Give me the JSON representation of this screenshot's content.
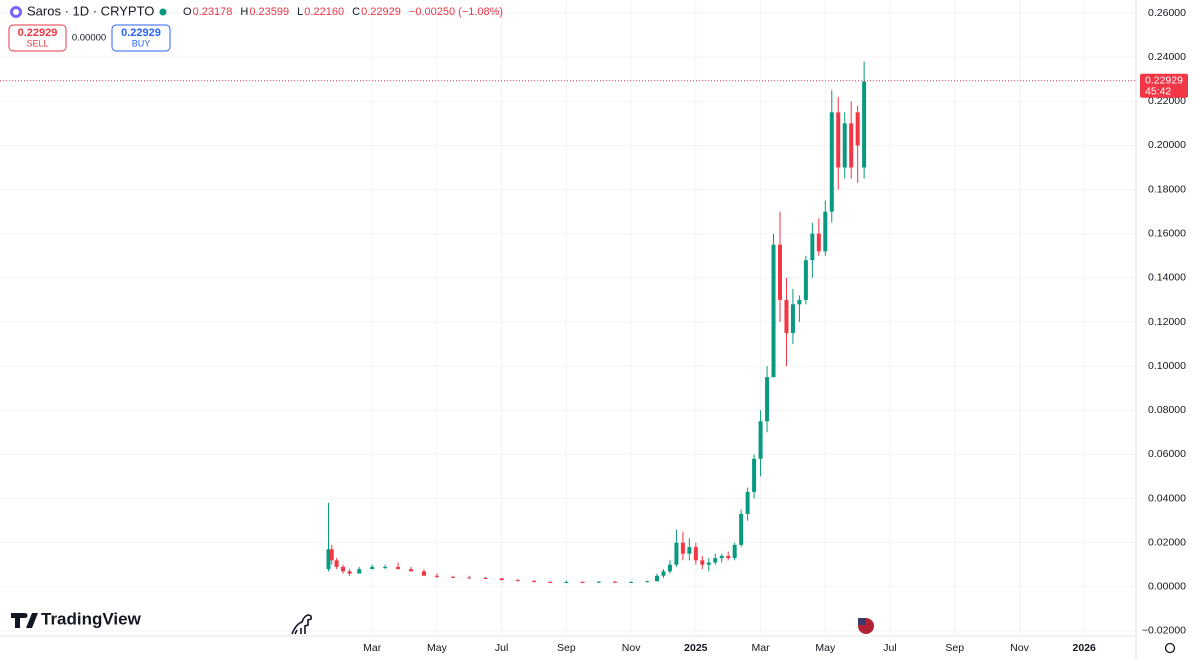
{
  "toolbar": {
    "symbol": "Saros · 1D · CRYPTO",
    "open_label": "O",
    "open": "0.23178",
    "high_label": "H",
    "high": "0.23599",
    "low_label": "L",
    "low": "0.22160",
    "close_label": "C",
    "close": "0.22929",
    "change": "−0.00250 (−1.08%)",
    "sell_price": "0.22929",
    "sell": "SELL",
    "spread": "0.00000",
    "buy_price": "0.22929",
    "buy": "BUY"
  },
  "logo": "TradingView",
  "chart_data": {
    "type": "candlestick",
    "up_color": "#089981",
    "down_color": "#f23645",
    "grid": true,
    "xlim": [
      -8.5,
      26.6
    ],
    "xticks": [
      {
        "value": 3,
        "label": "Mar"
      },
      {
        "value": 5,
        "label": "May"
      },
      {
        "value": 7,
        "label": "Jul"
      },
      {
        "value": 9,
        "label": "Sep"
      },
      {
        "value": 11,
        "label": "Nov"
      },
      {
        "value": 13,
        "label": "2025"
      },
      {
        "value": 15,
        "label": "Mar"
      },
      {
        "value": 17,
        "label": "May"
      },
      {
        "value": 19,
        "label": "Jul"
      },
      {
        "value": 21,
        "label": "Sep"
      },
      {
        "value": 23,
        "label": "Nov"
      },
      {
        "value": 25,
        "label": "2026"
      }
    ],
    "ylim": [
      -0.0223,
      0.2659
    ],
    "yticks": [
      {
        "value": 0.26,
        "label": "0.26000"
      },
      {
        "value": 0.24,
        "label": "0.24000"
      },
      {
        "value": 0.22,
        "label": "0.22000"
      },
      {
        "value": 0.2,
        "label": "0.20000"
      },
      {
        "value": 0.18,
        "label": "0.18000"
      },
      {
        "value": 0.16,
        "label": "0.16000"
      },
      {
        "value": 0.14,
        "label": "0.14000"
      },
      {
        "value": 0.12,
        "label": "0.12000"
      },
      {
        "value": 0.1,
        "label": "0.10000"
      },
      {
        "value": 0.08,
        "label": "0.08000"
      },
      {
        "value": 0.06,
        "label": "0.06000"
      },
      {
        "value": 0.04,
        "label": "0.04000"
      },
      {
        "value": 0.02,
        "label": "0.02000"
      },
      {
        "value": 0,
        "label": "0.00000"
      },
      {
        "value": -0.02,
        "label": "−0.02000"
      }
    ],
    "last_price": 0.22929,
    "countdown": "45:42",
    "x": [
      1.65,
      1.75,
      1.9,
      2.1,
      2.3,
      2.6,
      3.0,
      3.4,
      3.8,
      4.2,
      4.6,
      5.0,
      5.5,
      6.0,
      6.5,
      7.0,
      7.5,
      8.0,
      8.5,
      9.0,
      9.5,
      10.0,
      10.5,
      11.0,
      11.5,
      11.8,
      12.0,
      12.2,
      12.4,
      12.6,
      12.8,
      13.0,
      13.2,
      13.4,
      13.6,
      13.8,
      14.0,
      14.2,
      14.4,
      14.6,
      14.8,
      15.0,
      15.2,
      15.4,
      15.6,
      15.8,
      16.0,
      16.2,
      16.4,
      16.6,
      16.8,
      17.0,
      17.2,
      17.4,
      17.6,
      17.8,
      18.0,
      18.2
    ],
    "open": [
      0.008,
      0.017,
      0.012,
      0.009,
      0.007,
      0.006,
      0.008,
      0.009,
      0.009,
      0.008,
      0.007,
      0.005,
      0.0045,
      0.0042,
      0.004,
      0.0038,
      0.003,
      0.0027,
      0.0022,
      0.002,
      0.0022,
      0.002,
      0.0023,
      0.002,
      0.0022,
      0.0025,
      0.005,
      0.007,
      0.01,
      0.02,
      0.015,
      0.018,
      0.012,
      0.01,
      0.011,
      0.013,
      0.014,
      0.013,
      0.019,
      0.033,
      0.043,
      0.058,
      0.075,
      0.095,
      0.155,
      0.13,
      0.115,
      0.128,
      0.13,
      0.148,
      0.16,
      0.152,
      0.17,
      0.215,
      0.19,
      0.21,
      0.215,
      0.19
    ],
    "high": [
      0.038,
      0.019,
      0.013,
      0.01,
      0.008,
      0.009,
      0.01,
      0.01,
      0.011,
      0.009,
      0.008,
      0.006,
      0.005,
      0.005,
      0.0045,
      0.004,
      0.0035,
      0.003,
      0.0025,
      0.0028,
      0.0025,
      0.0026,
      0.0026,
      0.0025,
      0.0028,
      0.006,
      0.008,
      0.012,
      0.026,
      0.025,
      0.022,
      0.02,
      0.014,
      0.013,
      0.015,
      0.015,
      0.016,
      0.02,
      0.035,
      0.045,
      0.06,
      0.08,
      0.1,
      0.16,
      0.17,
      0.14,
      0.135,
      0.132,
      0.15,
      0.165,
      0.167,
      0.175,
      0.225,
      0.222,
      0.215,
      0.22,
      0.218,
      0.238
    ],
    "low": [
      0.007,
      0.01,
      0.008,
      0.006,
      0.005,
      0.006,
      0.008,
      0.008,
      0.008,
      0.007,
      0.005,
      0.004,
      0.004,
      0.0038,
      0.0035,
      0.003,
      0.0025,
      0.002,
      0.0018,
      0.0018,
      0.0018,
      0.0018,
      0.0018,
      0.0018,
      0.002,
      0.0024,
      0.004,
      0.006,
      0.009,
      0.012,
      0.012,
      0.01,
      0.008,
      0.007,
      0.01,
      0.011,
      0.012,
      0.012,
      0.018,
      0.03,
      0.04,
      0.05,
      0.07,
      0.095,
      0.12,
      0.1,
      0.11,
      0.12,
      0.128,
      0.14,
      0.15,
      0.15,
      0.165,
      0.18,
      0.185,
      0.185,
      0.183,
      0.185
    ],
    "close": [
      0.017,
      0.012,
      0.009,
      0.007,
      0.006,
      0.008,
      0.009,
      0.009,
      0.008,
      0.007,
      0.005,
      0.0045,
      0.0042,
      0.004,
      0.0038,
      0.003,
      0.0027,
      0.0022,
      0.002,
      0.0022,
      0.002,
      0.0023,
      0.002,
      0.0022,
      0.0025,
      0.005,
      0.007,
      0.01,
      0.02,
      0.015,
      0.018,
      0.012,
      0.01,
      0.011,
      0.013,
      0.014,
      0.013,
      0.019,
      0.033,
      0.043,
      0.058,
      0.075,
      0.095,
      0.155,
      0.13,
      0.115,
      0.128,
      0.13,
      0.148,
      0.16,
      0.152,
      0.17,
      0.215,
      0.19,
      0.21,
      0.19,
      0.2,
      0.229
    ]
  }
}
